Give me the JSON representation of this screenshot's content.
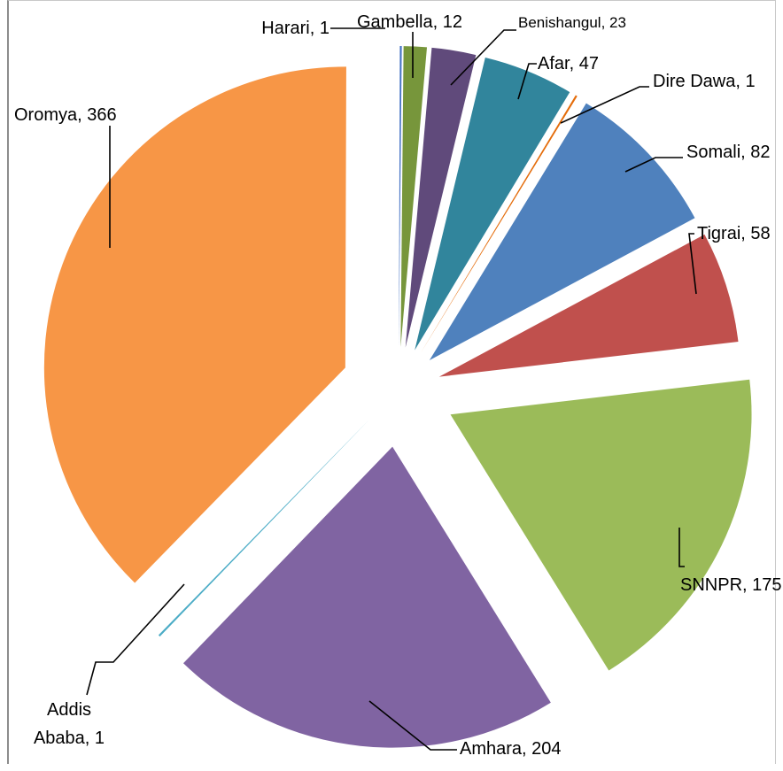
{
  "chart_data": {
    "type": "pie",
    "exploded": true,
    "slices": [
      {
        "label": "Harari",
        "value": 1,
        "color": "#4472c4",
        "text": "Harari, 1"
      },
      {
        "label": "Gambella",
        "value": 12,
        "color": "#77963b",
        "text": "Gambella, 12"
      },
      {
        "label": "Benishangul",
        "value": 23,
        "color": "#604a7b",
        "text": "Benishangul, 23"
      },
      {
        "label": "Afar",
        "value": 47,
        "color": "#31859c",
        "text": "Afar, 47"
      },
      {
        "label": "Dire Dawa",
        "value": 1,
        "color": "#e46c0a",
        "text": "Dire Dawa, 1"
      },
      {
        "label": "Somali",
        "value": 82,
        "color": "#4f81bd",
        "text": "Somali, 82"
      },
      {
        "label": "Tigrai",
        "value": 58,
        "color": "#c0504d",
        "text": "Tigrai, 58"
      },
      {
        "label": "SNNPR",
        "value": 175,
        "color": "#9bbb59",
        "text": "SNNPR, 175"
      },
      {
        "label": "Amhara",
        "value": 204,
        "color": "#8064a2",
        "text": "Amhara, 204"
      },
      {
        "label": "Addis Ababa",
        "value": 1,
        "color": "#4bacc6",
        "text": "Addis Ababa, 1",
        "lines": [
          "Addis",
          "Ababa, 1"
        ]
      },
      {
        "label": "Oromya",
        "value": 366,
        "color": "#f79646",
        "text": "Oromya, 366"
      }
    ]
  }
}
